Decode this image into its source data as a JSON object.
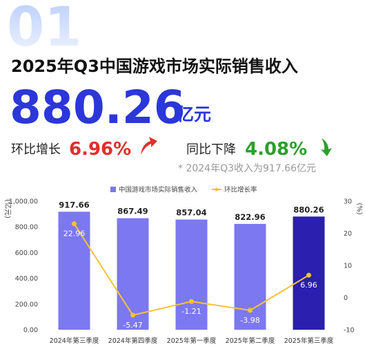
{
  "header": {
    "number": "01",
    "title": "2025年Q3中国游戏市场实际销售收入",
    "revenue": "880.26",
    "revenue_unit": "亿元",
    "qoq_label": "环比增长",
    "qoq_value": "6.96%",
    "yoy_label": "同比下降",
    "yoy_value": "4.08%",
    "note": "* 2024年Q3收入为917.66亿元"
  },
  "chart_data": {
    "type": "bar",
    "y_label": "(亿元)",
    "y2_label": "(%)",
    "categories": [
      "2024年第三季度",
      "2024年第四季度",
      "2025年第一季度",
      "2025年第二季度",
      "2025年第三季度"
    ],
    "series": [
      {
        "name": "中国游戏市场实际销售收入",
        "type": "bar",
        "colors": [
          "#7c78f2",
          "#7c78f2",
          "#7c78f2",
          "#7c78f2",
          "#2a1fae"
        ],
        "values": [
          917.66,
          867.49,
          857.04,
          822.96,
          880.26
        ]
      },
      {
        "name": "环比增长率",
        "type": "line",
        "axis": "y2",
        "color": "#f6c331",
        "values": [
          22.96,
          -5.47,
          -1.21,
          -3.98,
          6.96
        ]
      }
    ],
    "ylim": [
      0,
      1000
    ],
    "yticks": [
      {
        "value": 1000,
        "label": "1,000.00"
      },
      {
        "value": 800,
        "label": "800.00"
      },
      {
        "value": 600,
        "label": "600.00"
      },
      {
        "value": 400,
        "label": "400.00"
      },
      {
        "value": 200,
        "label": "200.00"
      },
      {
        "value": 0,
        "label": "0.00"
      }
    ],
    "y2lim": [
      -10,
      30
    ],
    "y2ticks": [
      30,
      20,
      10,
      0,
      -10
    ],
    "legend": "top"
  }
}
